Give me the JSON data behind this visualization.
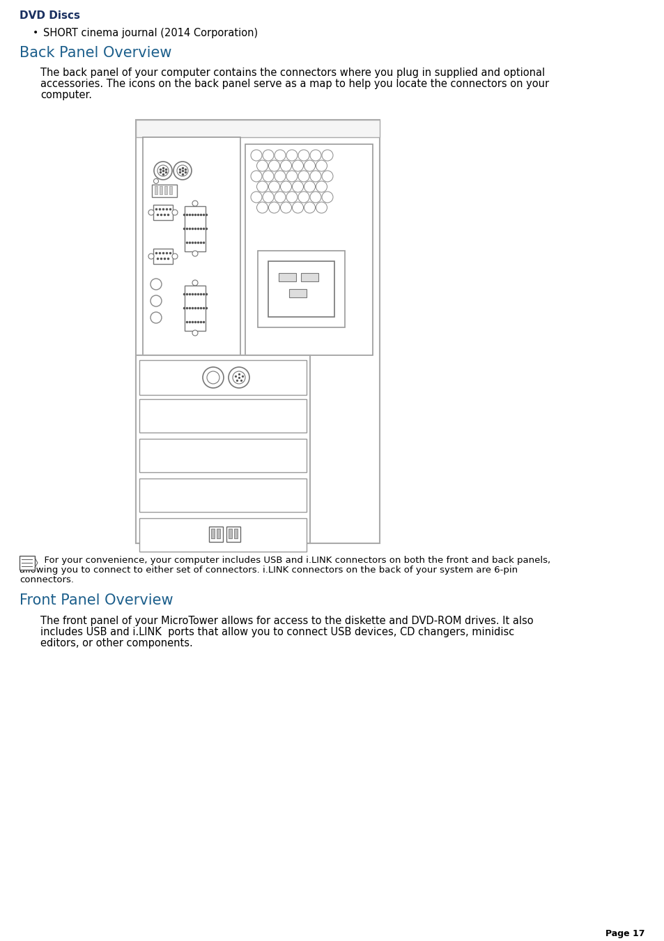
{
  "title_dvd": "DVD Discs",
  "bullet_text": "SHORT cinema journal (2014 Corporation)",
  "section1_title": "Back Panel Overview",
  "section1_body1": "The back panel of your computer contains the connectors where you plug in supplied and optional",
  "section1_body2": "accessories. The icons on the back panel serve as a map to help you locate the connectors on your",
  "section1_body3": "computer.",
  "note_line1": "  For your convenience, your computer includes USB and i.LINK connectors on both the front and back panels,",
  "note_line2": "allowing you to connect to either set of connectors. i.LINK connectors on the back of your system are 6-pin",
  "note_line3": "connectors.",
  "section2_title": "Front Panel Overview",
  "section2_body1": "The front panel of your MicroTower allows for access to the diskette and DVD-ROM drives. It also",
  "section2_body2": "includes USB and i.LINK  ports that allow you to connect USB devices, CD changers, minidisc",
  "section2_body3": "editors, or other components.",
  "page_text": "Page 17",
  "bg_color": "#ffffff",
  "text_color": "#000000",
  "heading_color": "#1b5e8b",
  "dvd_color": "#1a3060"
}
